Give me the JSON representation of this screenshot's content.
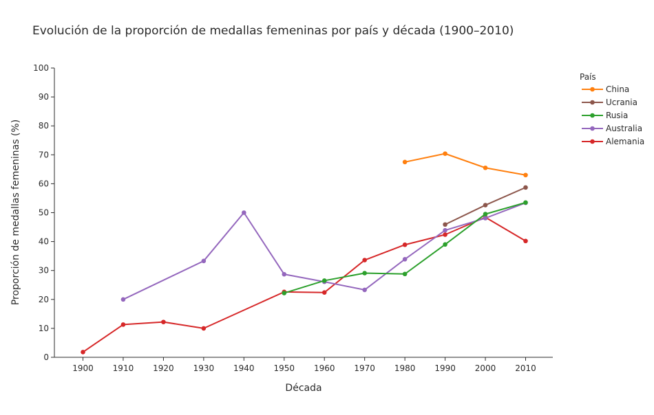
{
  "chart_data": {
    "type": "line",
    "title": "Evolución de la proporción de medallas femeninas por país y década (1900–2010)",
    "xlabel": "Década",
    "ylabel": "Proporción de medallas femeninas (%)",
    "x": [
      1900,
      1910,
      1920,
      1930,
      1940,
      1950,
      1960,
      1970,
      1980,
      1990,
      2000,
      2010
    ],
    "ylim": [
      0,
      100
    ],
    "yticks": [
      0,
      10,
      20,
      30,
      40,
      50,
      60,
      70,
      80,
      90,
      100
    ],
    "grid": false,
    "legend": {
      "title": "País",
      "placement": "top-right"
    },
    "series": [
      {
        "name": "China",
        "color": "#ff7f0e",
        "points": [
          [
            1980,
            67.5
          ],
          [
            1990,
            70.4
          ],
          [
            2000,
            65.5
          ],
          [
            2010,
            63.0
          ]
        ]
      },
      {
        "name": "Ucrania",
        "color": "#8c564b",
        "points": [
          [
            1990,
            45.9
          ],
          [
            2000,
            52.6
          ],
          [
            2010,
            58.7
          ]
        ]
      },
      {
        "name": "Rusia",
        "color": "#2ca02c",
        "points": [
          [
            1950,
            22.2
          ],
          [
            1960,
            26.5
          ],
          [
            1970,
            29.1
          ],
          [
            1980,
            28.8
          ],
          [
            1990,
            39.0
          ],
          [
            2000,
            49.5
          ],
          [
            2010,
            53.5
          ]
        ]
      },
      {
        "name": "Australia",
        "color": "#9467bd",
        "points": [
          [
            1910,
            20.0
          ],
          [
            1930,
            33.3
          ],
          [
            1940,
            50.0
          ],
          [
            1950,
            28.7
          ],
          [
            1960,
            26.1
          ],
          [
            1970,
            23.3
          ],
          [
            1980,
            33.9
          ],
          [
            1990,
            43.9
          ],
          [
            2000,
            48.1
          ],
          [
            2010,
            53.4
          ]
        ]
      },
      {
        "name": "Alemania",
        "color": "#d62728",
        "points": [
          [
            1900,
            1.8
          ],
          [
            1910,
            11.3
          ],
          [
            1920,
            12.2
          ],
          [
            1930,
            10.0
          ],
          [
            1950,
            22.6
          ],
          [
            1960,
            22.4
          ],
          [
            1970,
            33.6
          ],
          [
            1980,
            38.9
          ],
          [
            1990,
            42.4
          ],
          [
            2000,
            48.4
          ],
          [
            2010,
            40.2
          ]
        ]
      }
    ]
  }
}
